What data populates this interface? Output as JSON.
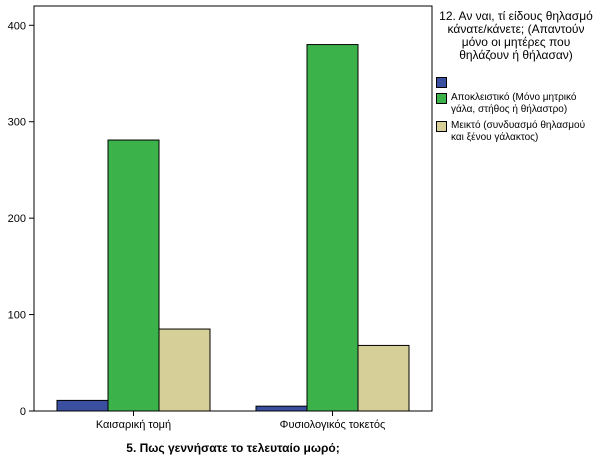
{
  "chart_data": {
    "type": "bar",
    "title": "",
    "xlabel": "5. Πως γεννήσατε το τελευταίο μωρό;",
    "ylabel": "",
    "ylim": [
      0,
      420
    ],
    "yticks": [
      0,
      100,
      200,
      300,
      400
    ],
    "grid": false,
    "legend_position": "right",
    "categories": [
      "Καισαρική τομή",
      "Φυσιολογικός τοκετός"
    ],
    "legend_title": "12. Αν ναι, τί είδους θηλασμό κάνατε/κάνετε; (Απαντούν μόνο οι μητέρες που θηλάζουν ή θήλασαν)",
    "series": [
      {
        "name": "",
        "color": "#3a4fa0",
        "values": [
          11,
          5
        ]
      },
      {
        "name": "Αποκλειστικό (Μόνο μητρικό γάλα, στήθος ή θήλαστρο)",
        "color": "#3cb34a",
        "values": [
          281,
          380
        ]
      },
      {
        "name": "Μεικτό (συνδυασμό θηλασμού και ξένου γάλακτος)",
        "color": "#d7cf98",
        "values": [
          85,
          68
        ]
      }
    ]
  }
}
